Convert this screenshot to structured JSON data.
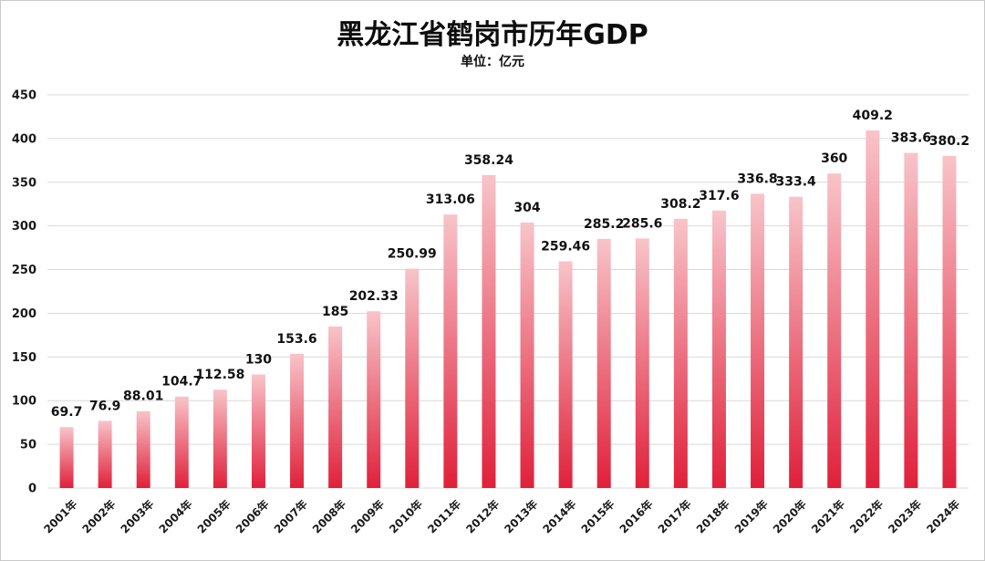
{
  "chart_data": {
    "type": "bar",
    "title": "黑龙江省鹤岗市历年GDP",
    "subtitle": "单位：亿元",
    "xlabel": "",
    "ylabel": "",
    "ylim": [
      0,
      450
    ],
    "yticks": [
      0,
      50,
      100,
      150,
      200,
      250,
      300,
      350,
      400,
      450
    ],
    "grid": true,
    "legend": "none",
    "categories": [
      "2001年",
      "2002年",
      "2003年",
      "2004年",
      "2005年",
      "2006年",
      "2007年",
      "2008年",
      "2009年",
      "2010年",
      "2011年",
      "2012年",
      "2013年",
      "2014年",
      "2015年",
      "2016年",
      "2017年",
      "2018年",
      "2019年",
      "2020年",
      "2021年",
      "2022年",
      "2023年",
      "2024年"
    ],
    "values": [
      69.7,
      76.9,
      88.01,
      104.7,
      112.58,
      130,
      153.6,
      185,
      202.33,
      250.99,
      313.06,
      358.24,
      304,
      259.46,
      285.2,
      285.6,
      308.2,
      317.6,
      336.8,
      333.4,
      360,
      409.2,
      383.6,
      380.2
    ],
    "value_labels": [
      "69.7",
      "76.9",
      "88.01",
      "104.7",
      "112.58",
      "130",
      "153.6",
      "185",
      "202.33",
      "250.99",
      "313.06",
      "358.24",
      "304",
      "259.46",
      "285.2",
      "285.6",
      "308.2",
      "317.6",
      "336.8",
      "333.4",
      "360",
      "409.2",
      "383.6",
      "380.2"
    ],
    "colors": {
      "bar_top": "#f8c4c9",
      "bar_bottom": "#e0203a",
      "grid": "#d9d9d9"
    }
  }
}
